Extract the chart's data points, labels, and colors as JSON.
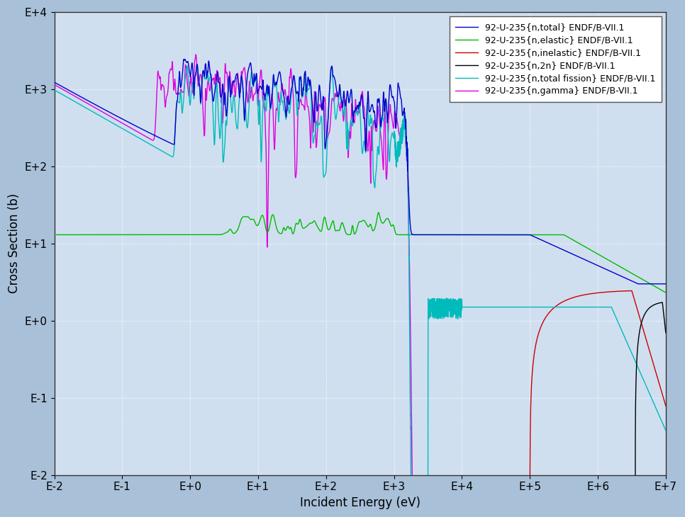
{
  "xlabel": "Incident Energy (eV)",
  "ylabel": "Cross Section (b)",
  "background_color": "#a8c0d8",
  "plot_bg_color": "#d0dff0",
  "grid_color": "#ffffff",
  "legend_labels": [
    "92-U-235{n,total} ENDF/B-VII.1",
    "92-U-235{n,elastic} ENDF/B-VII.1",
    "92-U-235{n,inelastic} ENDF/B-VII.1",
    "92-U-235{n,2n} ENDF/B-VII.1",
    "92-U-235{n,total fission} ENDF/B-VII.1",
    "92-U-235{n,gamma} ENDF/B-VII.1"
  ],
  "line_colors": [
    "#0000cc",
    "#00bb00",
    "#cc0000",
    "#000000",
    "#00bbbb",
    "#dd00dd"
  ],
  "line_widths": [
    1.0,
    1.0,
    1.0,
    1.0,
    1.0,
    1.0
  ],
  "xtick_labels": [
    "E-2",
    "E-1",
    "E+0",
    "E+1",
    "E+2",
    "E+3",
    "E+4",
    "E+5",
    "E+6",
    "E+7"
  ],
  "ytick_labels": [
    "E-2",
    "E-1",
    "E+0",
    "E+1",
    "E+2",
    "E+3",
    "E+4"
  ]
}
